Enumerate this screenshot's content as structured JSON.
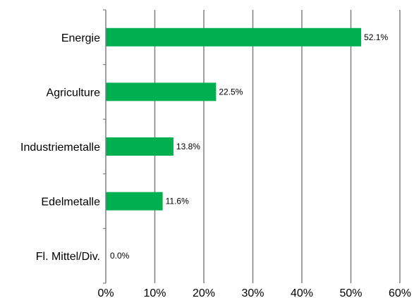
{
  "chart_data": {
    "type": "bar",
    "orientation": "horizontal",
    "categories": [
      "Energie",
      "Agriculture",
      "Industriemetalle",
      "Edelmetalle",
      "Fl. Mittel/Div."
    ],
    "values": [
      52.1,
      22.5,
      13.8,
      11.6,
      0.0
    ],
    "value_labels": [
      "52.1%",
      "22.5%",
      "13.8%",
      "11.6%",
      "0.0%"
    ],
    "xlim": [
      0,
      60
    ],
    "x_ticks": [
      0,
      10,
      20,
      30,
      40,
      50,
      60
    ],
    "x_tick_labels": [
      "0%",
      "10%",
      "20%",
      "30%",
      "40%",
      "50%",
      "60%"
    ],
    "grid": true,
    "bar_color": "#00B050",
    "grid_color": "#808080"
  }
}
